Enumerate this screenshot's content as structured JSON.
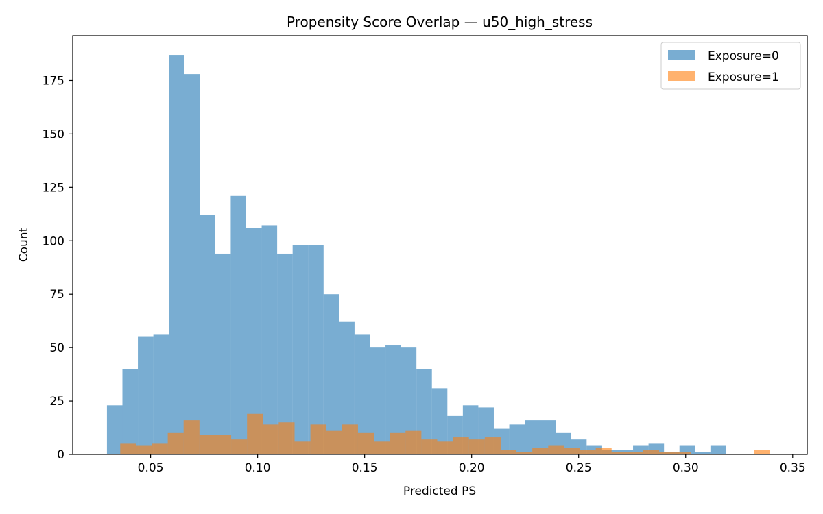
{
  "chart_data": {
    "type": "bar",
    "title": "Propensity Score Overlap — u50_high_stress",
    "xlabel": "Predicted PS",
    "ylabel": "Count",
    "xlim": [
      0.0136,
      0.3568
    ],
    "ylim": [
      0,
      196
    ],
    "xticks": [
      0.05,
      0.1,
      0.15,
      0.2,
      0.25,
      0.3,
      0.35
    ],
    "xtick_labels": [
      "0.05",
      "0.10",
      "0.15",
      "0.20",
      "0.25",
      "0.30",
      "0.35"
    ],
    "yticks": [
      0,
      25,
      50,
      75,
      100,
      125,
      150,
      175
    ],
    "ytick_labels": [
      "0",
      "25",
      "50",
      "75",
      "100",
      "125",
      "150",
      "175"
    ],
    "legend_position": "top-right",
    "series": [
      {
        "name": "Exposure=0",
        "color": "#1f77b4",
        "alpha": 0.6,
        "bin_start": 0.0296,
        "bin_width": 0.00723,
        "values": [
          23,
          40,
          55,
          56,
          187,
          178,
          112,
          94,
          121,
          106,
          107,
          94,
          98,
          98,
          75,
          62,
          56,
          50,
          51,
          50,
          40,
          31,
          18,
          23,
          22,
          12,
          14,
          16,
          16,
          10,
          7,
          4,
          2,
          2,
          4,
          5,
          1,
          4,
          1,
          4
        ]
      },
      {
        "name": "Exposure=1",
        "color": "#ff7f0e",
        "alpha": 0.6,
        "bin_start": 0.0358,
        "bin_width": 0.007406,
        "values": [
          5,
          4,
          5,
          10,
          16,
          9,
          9,
          7,
          19,
          14,
          15,
          6,
          14,
          11,
          14,
          10,
          6,
          10,
          11,
          7,
          6,
          8,
          7,
          8,
          2,
          1,
          3,
          4,
          3,
          2,
          3,
          1,
          1,
          2,
          1,
          1,
          0,
          0,
          0,
          0,
          2
        ]
      }
    ]
  }
}
